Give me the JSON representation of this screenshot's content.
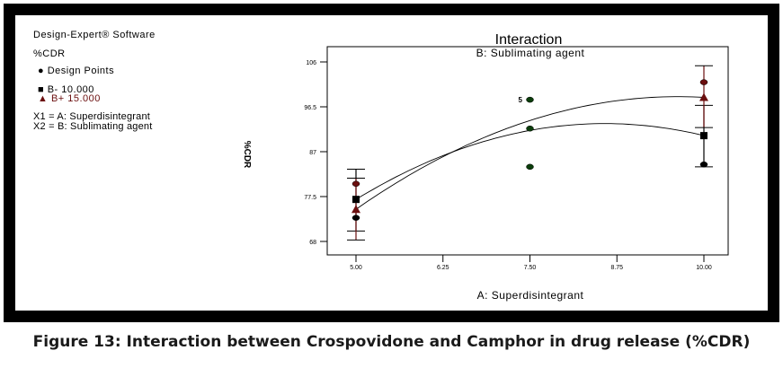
{
  "legend": {
    "software": "Design-Expert® Software",
    "response": "%CDR",
    "design_points": "Design Points",
    "b_minus": "B- 10.000",
    "b_plus": "B+ 15.000",
    "x1": "X1 = A: Superdisintegrant",
    "x2": "X2 = B: Sublimating agent"
  },
  "caption": "Figure 13: Interaction between Crospovidone and Camphor in drug release (%CDR)",
  "chart_data": {
    "type": "line",
    "title": "Interaction",
    "subtitle": "B: Sublimating agent",
    "xlabel": "A: Superdisintegrant",
    "ylabel": "%CDR",
    "xlim": [
      5,
      10
    ],
    "ylim": [
      68,
      106
    ],
    "xticks": [
      "5.00",
      "6.25",
      "7.50",
      "8.75",
      "10.00"
    ],
    "yticks": [
      "68",
      "77.5",
      "87",
      "96.5",
      "106"
    ],
    "colors": {
      "b_minus": "#000000",
      "b_plus": "#6b0f0f",
      "design": "#0b3d0b"
    },
    "series": [
      {
        "name": "B- 10.000",
        "marker": "square",
        "x": [
          5,
          7.5,
          10
        ],
        "y": [
          76.9,
          91.5,
          90.4
        ]
      },
      {
        "name": "B+ 15.000",
        "marker": "triangle",
        "x": [
          5,
          7.5,
          10
        ],
        "y": [
          74.8,
          93.6,
          98.5
        ]
      }
    ],
    "design_points": [
      {
        "x": 5,
        "y": 80.2,
        "group": "B+"
      },
      {
        "x": 5,
        "y": 73.0,
        "group": "B-"
      },
      {
        "x": 7.5,
        "y": 98.0,
        "group": "center",
        "label": "5"
      },
      {
        "x": 7.5,
        "y": 91.9,
        "group": "center"
      },
      {
        "x": 7.5,
        "y": 83.8,
        "group": "center"
      },
      {
        "x": 10,
        "y": 101.7,
        "group": "B+"
      },
      {
        "x": 10,
        "y": 84.3,
        "group": "B-"
      }
    ],
    "error_bars": [
      {
        "x": 5,
        "series": "B-",
        "low": 70.2,
        "high": 83.3
      },
      {
        "x": 5,
        "series": "B+",
        "low": 68.3,
        "high": 81.4
      },
      {
        "x": 10,
        "series": "B-",
        "low": 83.8,
        "high": 96.8
      },
      {
        "x": 10,
        "series": "B+",
        "low": 92.1,
        "high": 105.2
      }
    ]
  }
}
